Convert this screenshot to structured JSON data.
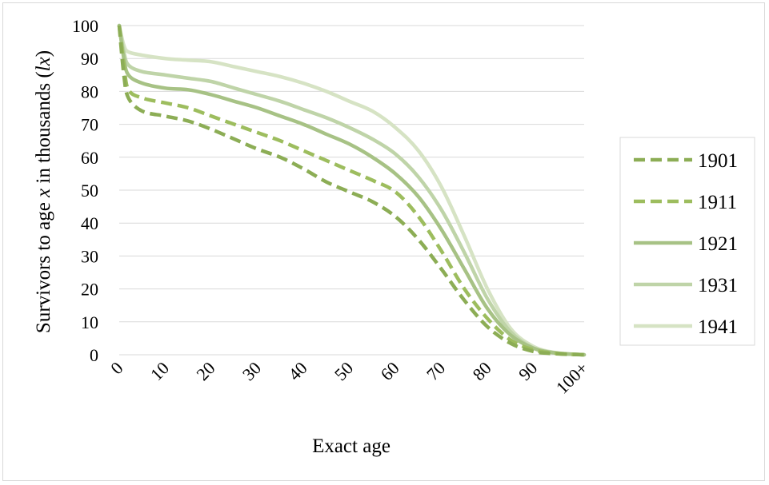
{
  "chart_data": {
    "type": "line",
    "ylabel_parts": [
      "Survivors to age ",
      "x",
      " in thousands (",
      "lx",
      ")"
    ],
    "xlabel": "Exact age",
    "ylim": [
      0,
      100
    ],
    "yticks": [
      "0",
      "10",
      "20",
      "30",
      "40",
      "50",
      "60",
      "70",
      "80",
      "90",
      "100"
    ],
    "xlim": [
      0,
      101
    ],
    "xticks": [
      "0",
      "10",
      "20",
      "30",
      "40",
      "50",
      "60",
      "70",
      "80",
      "90",
      "100+"
    ],
    "grid": true,
    "legend_position": "right",
    "series": [
      {
        "name": "1901",
        "color": "#8cad55",
        "dashed": true,
        "x": [
          0,
          1,
          2,
          5,
          10,
          15,
          20,
          25,
          30,
          35,
          40,
          45,
          50,
          55,
          60,
          65,
          70,
          75,
          80,
          85,
          90,
          95,
          101
        ],
        "y": [
          100,
          85,
          78,
          74,
          72.5,
          71,
          68.5,
          65.5,
          62.5,
          60,
          56.5,
          52.5,
          49.5,
          46.5,
          42,
          35,
          26,
          16.5,
          8.5,
          3.5,
          1,
          0.3,
          0
        ]
      },
      {
        "name": "1911",
        "color": "#9dbd5e",
        "dashed": true,
        "x": [
          0,
          1,
          2,
          5,
          10,
          15,
          20,
          25,
          30,
          35,
          40,
          45,
          50,
          55,
          60,
          65,
          70,
          75,
          80,
          85,
          90,
          95,
          101
        ],
        "y": [
          100,
          88,
          80.5,
          78,
          76.5,
          75,
          72.5,
          70,
          67.5,
          65,
          62,
          59,
          56,
          53,
          49.5,
          42,
          31.5,
          20,
          11,
          4.5,
          1.5,
          0.4,
          0
        ]
      },
      {
        "name": "1921",
        "color": "#a7c285",
        "dashed": false,
        "x": [
          0,
          1,
          2,
          5,
          10,
          15,
          20,
          25,
          30,
          35,
          40,
          45,
          50,
          55,
          60,
          65,
          70,
          75,
          80,
          85,
          90,
          95,
          101
        ],
        "y": [
          100,
          90,
          85,
          82.5,
          81,
          80.5,
          79,
          77,
          75,
          72.5,
          70,
          67,
          64,
          60,
          55,
          48,
          38,
          26,
          14,
          6,
          2,
          0.5,
          0
        ]
      },
      {
        "name": "1931",
        "color": "#bfd4a8",
        "dashed": false,
        "x": [
          0,
          1,
          2,
          5,
          10,
          15,
          20,
          25,
          30,
          35,
          40,
          45,
          50,
          55,
          60,
          65,
          70,
          75,
          80,
          85,
          90,
          95,
          101
        ],
        "y": [
          100,
          92,
          88,
          86,
          85,
          84,
          83,
          81,
          79,
          77,
          74.5,
          72,
          69,
          65.5,
          61,
          54,
          44,
          31,
          17,
          7,
          2,
          0.5,
          0
        ]
      },
      {
        "name": "1941",
        "color": "#d6e3c4",
        "dashed": false,
        "x": [
          0,
          1,
          2,
          5,
          10,
          15,
          20,
          25,
          30,
          35,
          40,
          45,
          50,
          55,
          60,
          65,
          70,
          75,
          80,
          85,
          90,
          95,
          101
        ],
        "y": [
          100,
          94,
          92,
          91,
          90,
          89.5,
          89,
          87.5,
          86,
          84.5,
          82.5,
          80,
          77,
          74,
          69,
          62,
          51,
          36,
          20,
          8,
          2.5,
          0.6,
          0
        ]
      }
    ]
  }
}
